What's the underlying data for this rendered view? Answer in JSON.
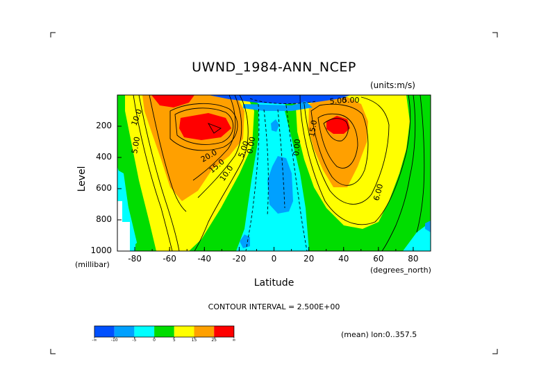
{
  "chart_data": {
    "type": "contour",
    "title": "UWND_1984-ANN_NCEP",
    "units": "(units:m/s)",
    "xlabel": "Latitude",
    "x_units": "(degrees_north)",
    "ylabel": "Level",
    "y_units": "(millibar)",
    "xlim": [
      -90,
      90
    ],
    "ylim": [
      1000,
      10
    ],
    "x_ticks": [
      -80,
      -60,
      -40,
      -20,
      0,
      20,
      40,
      60,
      80
    ],
    "y_ticks": [
      200,
      400,
      600,
      800,
      1000
    ],
    "contour_interval_text": "CONTOUR INTERVAL = 2.500E+00",
    "subtitle": "(mean) lon:0..357.5",
    "jets": [
      {
        "hemisphere": "south",
        "lat": -32,
        "level": 200,
        "max": 27
      },
      {
        "hemisphere": "north",
        "lat": 36,
        "level": 200,
        "max": 27
      }
    ],
    "contour_labels": [
      "10.0",
      "5.00",
      "20.0",
      "15.0",
      "10.0",
      "5.00",
      "0.00",
      "5.00",
      "0.00",
      "15.0",
      "5.00",
      "6.00"
    ],
    "colorbar": {
      "colors": [
        "#0050ff",
        "#00a0ff",
        "#00ffff",
        "#00dd00",
        "#ffff00",
        "#ffa000",
        "#ff0000"
      ],
      "labels": [
        "-∞",
        "-10",
        "-5",
        "0",
        "5",
        "15",
        "25",
        "∞"
      ]
    }
  }
}
